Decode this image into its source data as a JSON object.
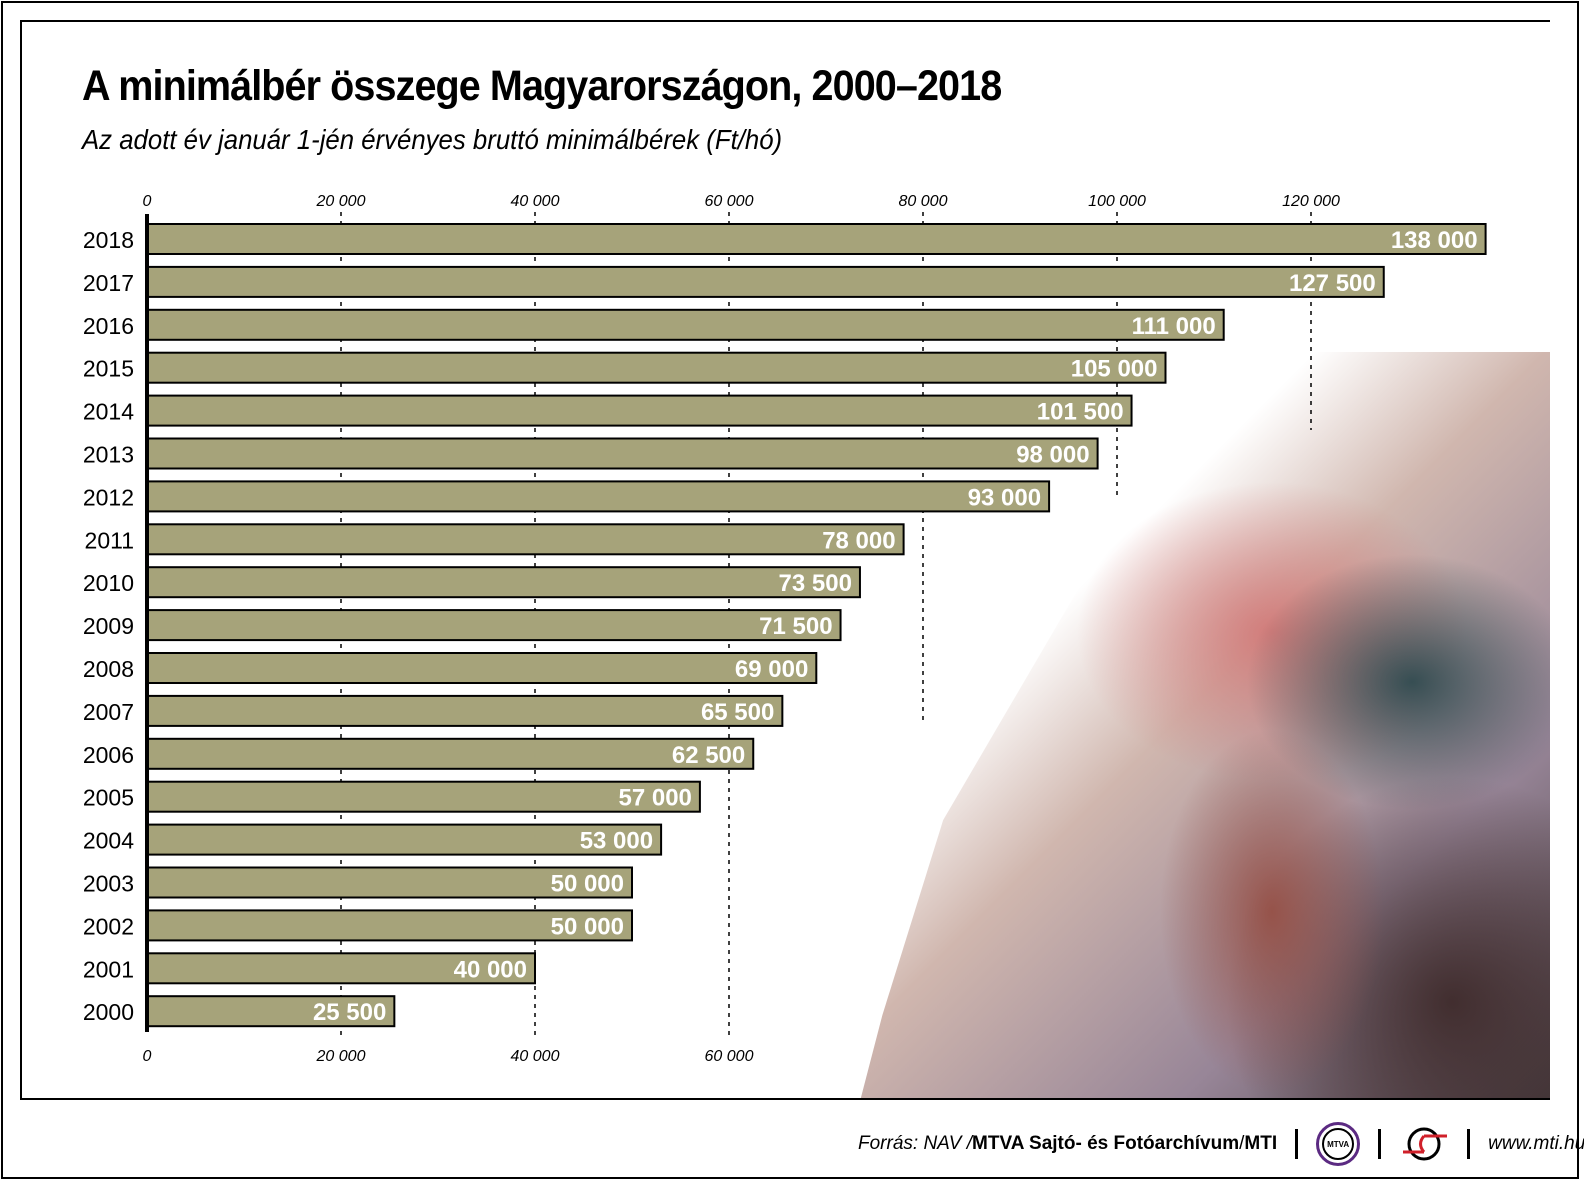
{
  "title": "A minimálbér összege Magyarországon, 2000–2018",
  "subtitle": "Az adott év január 1-jén érvényes bruttó minimálbérek (Ft/hó)",
  "chart_data": {
    "type": "bar",
    "orientation": "horizontal",
    "categories": [
      "2018",
      "2017",
      "2016",
      "2015",
      "2014",
      "2013",
      "2012",
      "2011",
      "2010",
      "2009",
      "2008",
      "2007",
      "2006",
      "2005",
      "2004",
      "2003",
      "2002",
      "2001",
      "2000"
    ],
    "values": [
      138000,
      127500,
      111000,
      105000,
      101500,
      98000,
      93000,
      78000,
      73500,
      71500,
      69000,
      65500,
      62500,
      57000,
      53000,
      50000,
      50000,
      40000,
      25500
    ],
    "value_labels": [
      "138 000",
      "127 500",
      "111 000",
      "105 000",
      "101 500",
      "98 000",
      "93 000",
      "78 000",
      "73 500",
      "71 500",
      "69 000",
      "65 500",
      "62 500",
      "57 000",
      "53 000",
      "50 000",
      "50 000",
      "40 000",
      "25 500"
    ],
    "top_ticks": [
      "0",
      "20 000",
      "40 000",
      "60 000",
      "80 000",
      "100 000",
      "120 000"
    ],
    "bottom_ticks": [
      "0",
      "20 000",
      "40 000",
      "60 000"
    ],
    "xlim": [
      0,
      140000
    ],
    "grid": "dashed vertical",
    "bar_color": "#a6a37a"
  },
  "footer": {
    "source_prefix": "Forrás: NAV / ",
    "source_bold": "MTVA Sajtó- és Fotóarchívum",
    "source_sep": " / ",
    "source_mti": "MTI",
    "mtva_logo": "MTVA",
    "url": "www.mti.hu"
  }
}
